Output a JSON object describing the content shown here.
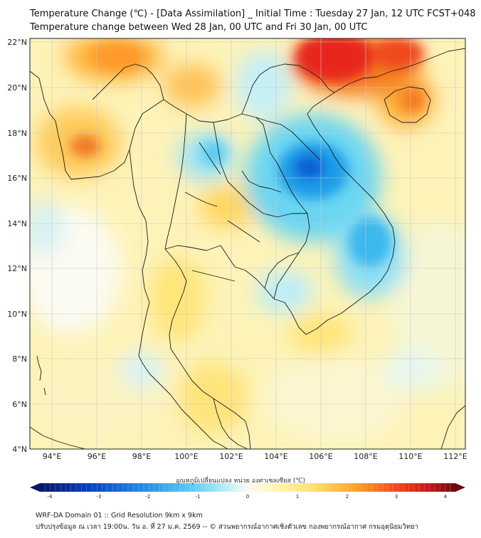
{
  "title": {
    "line1": "Temperature Change (℃) - [Data Assimilation] _ Initial Time : Tuesday 27 Jan, 12 UTC FCST+048",
    "line2": "Temperature change between Wed 28 Jan, 00 UTC and Fri 30 Jan, 00 UTC"
  },
  "axes": {
    "lat_labels": [
      "22°N",
      "20°N",
      "18°N",
      "16°N",
      "14°N",
      "12°N",
      "10°N",
      "8°N",
      "6°N",
      "4°N"
    ],
    "lon_labels": [
      "94°E",
      "96°E",
      "98°E",
      "100°E",
      "102°E",
      "104°E",
      "106°E",
      "108°E",
      "110°E",
      "112°E"
    ],
    "lat_range": [
      4,
      22
    ],
    "lon_range": [
      93,
      112.5
    ]
  },
  "colorbar": {
    "title": "อุณหภูมิเปลี่ยนแปลง หน่วย องศาเซลเซียส (℃)",
    "ticks": [
      "-4",
      "-3",
      "-2",
      "-1",
      "0",
      "1",
      "2",
      "3",
      "4"
    ],
    "range": [
      -4,
      4
    ]
  },
  "colors": {
    "neutral": "#fafaf2",
    "warm_light": "#fff2a8",
    "warm": "#ffe066",
    "hot": "#ffa321",
    "hotter": "#f26b1d",
    "red": "#e8211c",
    "cool_light": "#c9f2f8",
    "cool": "#5ad2f2",
    "cold": "#1ea1e8",
    "colder": "#0a5fd6",
    "border": "#1c1c1c"
  },
  "footer": {
    "line1": "WRF-DA Domain 01 :: Grid Resolution 9km x 9km",
    "line2": "ปรับปรุงข้อมูล ณ เวลา 19:00น. วัน อ. ที่ 27 ม.ค. 2569 -- © ส่วนพยากรณ์อากาศเชิงตัวเลข กองพยากรณ์อากาศ กรมอุตุนิยมวิทยา"
  }
}
